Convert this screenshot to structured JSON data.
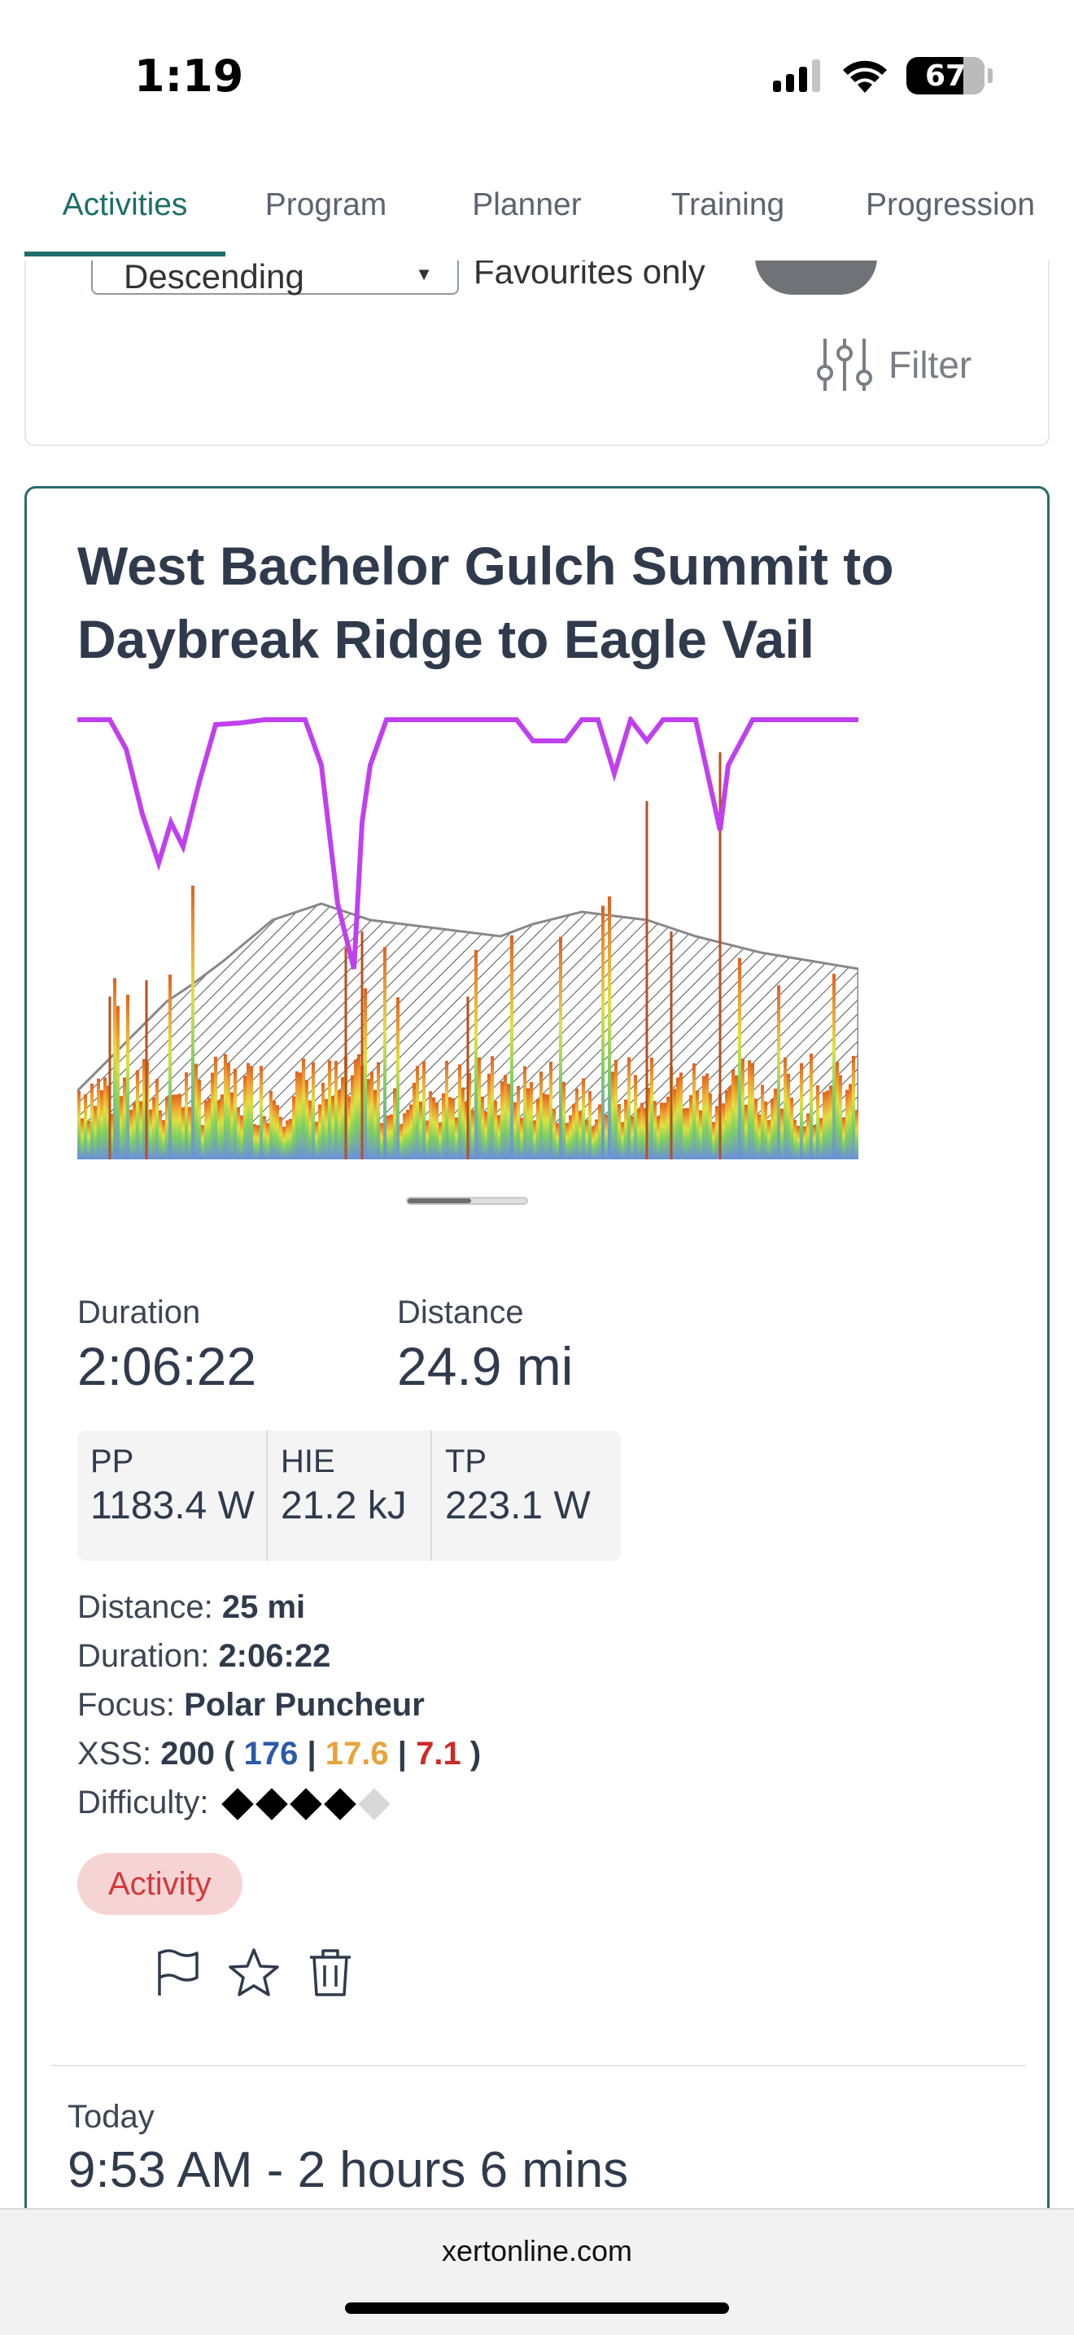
{
  "status": {
    "time": "1:19",
    "battery": "67"
  },
  "tabs": [
    "Activities",
    "Program",
    "Planner",
    "Training",
    "Progression"
  ],
  "filters": {
    "sort_value": "Descending",
    "favourites_label": "Favourites only",
    "filter_label": "Filter"
  },
  "activity": {
    "title": "West Bachelor Gulch Summit to Daybreak Ridge to Eagle Vail",
    "duration_label": "Duration",
    "duration": "2:06:22",
    "distance_label": "Distance",
    "distance": "24.9 mi",
    "stats": [
      {
        "key": "PP",
        "value": "1183.4 W"
      },
      {
        "key": "HIE",
        "value": "21.2 kJ"
      },
      {
        "key": "TP",
        "value": "223.1 W"
      }
    ],
    "details": {
      "distance_label": "Distance:",
      "distance_value": "25 mi",
      "duration_label": "Duration:",
      "duration_value": "2:06:22",
      "focus_label": "Focus:",
      "focus_value": "Polar Puncheur",
      "xss_label": "XSS:",
      "xss_total": "200",
      "xss_low": "176",
      "xss_high": "17.6",
      "xss_peak": "7.1",
      "difficulty_label": "Difficulty:",
      "difficulty": 4,
      "difficulty_max": 5
    },
    "badge": "Activity",
    "date_label": "Today",
    "time_range": "9:53 AM - 2 hours 6 mins"
  },
  "colors": {
    "accent": "#1e6e6a",
    "card_border": "#2a6b6b",
    "mpa_line": "#c040f0",
    "xss_low": "#2c5aa8",
    "xss_high": "#e8a33a",
    "xss_peak": "#cc2a2a",
    "badge_bg": "#f7d4d4",
    "badge_text": "#d23a3a"
  },
  "browser": {
    "url": "xertonline.com"
  }
}
